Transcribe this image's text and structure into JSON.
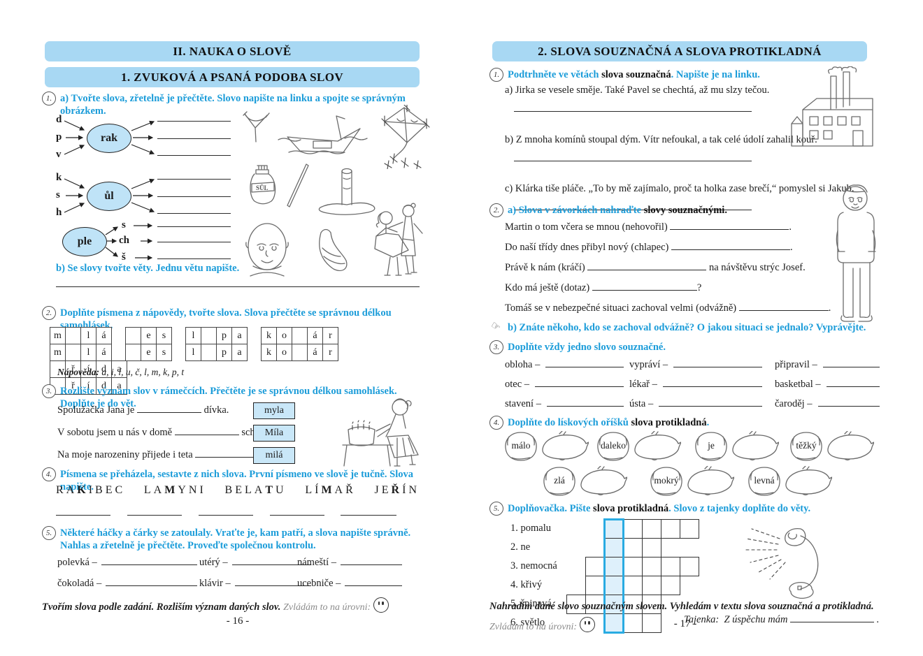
{
  "accent": {
    "bar_fill": "#a8d8f3",
    "blue_text": "#1b9cd9",
    "box_fill": "#c9e7f8",
    "tajenka_border": "#29abe2"
  },
  "left_page": {
    "title": "II. NAUKA O SLOVĚ",
    "subtitle": "1. ZVUKOVÁ A PSANÁ PODOBA SLOV",
    "ex1": {
      "number": "1.",
      "instruction_a": "a) Tvořte slova, zřetelně je přečtěte. Slovo napište na linku a spojte se správným obrázkem.",
      "instruction_b": "b) Se slovy tvořte věty. Jednu větu napište.",
      "group1_letters": [
        "d",
        "p",
        "v"
      ],
      "group1_core": "rak",
      "group2_letters": [
        "k",
        "s",
        "h"
      ],
      "group2_core": "ůl",
      "group3_core": "ple",
      "group3_letters": [
        "s",
        "ch",
        "š"
      ],
      "salt_label": "SŮL"
    },
    "ex2": {
      "number": "2.",
      "instruction": "Doplňte písmena z nápovědy, tvořte slova. Slova přečtěte se správnou délkou samohlásek.",
      "tables": [
        [
          "m",
          "",
          "l",
          "á"
        ],
        [
          "",
          "e",
          "s"
        ],
        [
          "l",
          "",
          "p",
          "a"
        ],
        [
          "k",
          "o",
          "",
          "á",
          "r"
        ],
        [
          "",
          "ř",
          "í",
          "d",
          "a"
        ]
      ],
      "hint_label": "Nápověda:",
      "hint": "a, i, í, u, č, l, m, k, p, t"
    },
    "ex3": {
      "number": "3.",
      "instruction": "Rozlište význam slov v rámečcích. Přečtěte je se správnou délkou samohlásek. Doplňte je do vět.",
      "s1_pre": "Spolužačka Jana je",
      "s1_post": "dívka.",
      "s2_pre": "V sobotu jsem u nás v domě",
      "s2_post": "schody.",
      "s3_pre": "Na moje narozeniny přijede i teta",
      "s3_post": ".",
      "boxes": [
        "myla",
        "Míla",
        "milá"
      ]
    },
    "ex4": {
      "number": "4.",
      "instruction": "Písmena se přeházela, sestavte z nich slova. První písmeno ve slově je tučně. Slova napište.",
      "words": [
        {
          "pre": "RA",
          "bold": "K",
          "post": "IBEC"
        },
        {
          "pre": "LA",
          "bold": "M",
          "post": "YNI"
        },
        {
          "pre": "BELA",
          "bold": "T",
          "post": "U"
        },
        {
          "pre": "LÍ",
          "bold": "M",
          "post": "AŘ"
        },
        {
          "pre": "JE",
          "bold": "Ř",
          "post": "ÍN"
        }
      ]
    },
    "ex5": {
      "number": "5.",
      "instruction": "Některé háčky a čárky se zatoulaly. Vraťte je, kam patří, a slova napište správně. Nahlas a zřetelně je přečtěte. Proveďte společnou kontrolu.",
      "items": [
        "polevká –",
        "utérý –",
        "námeští –",
        "čokoladá –",
        "klávir –",
        "ucebniče –"
      ]
    },
    "footer_bold": "Tvořím slova podle zadání. Rozliším význam daných slov.",
    "footer_gray": "Zvládám to na úrovni:",
    "page_number": "- 16 -"
  },
  "right_page": {
    "title": "2. SLOVA SOUZNAČNÁ A SLOVA PROTIKLADNÁ",
    "ex1": {
      "number": "1.",
      "instr_blue1": "Podtrhněte ve větách ",
      "instr_black": "slova souznačná",
      "instr_blue2": ". Napište je na linku.",
      "sentence_a": "a) Jirka se vesele směje. Také Pavel se chechtá, až mu slzy tečou.",
      "sentence_b": "b) Z mnoha komínů stoupal dým. Vítr nefoukal, a tak celé údolí zahalil kouř.",
      "sentence_c": "c) Klárka tiše pláče. „To by mě zajímalo, proč ta holka zase brečí,“ pomyslel si Jakub."
    },
    "ex2": {
      "number": "2.",
      "instr_blue": "a) Slova v závorkách nahraďte ",
      "instr_black": "slovy souznačnými.",
      "rows": [
        {
          "pre": "Martin o tom včera se mnou (nehovořil)",
          "tail": "."
        },
        {
          "pre": "Do naší třídy dnes přibyl nový (chlapec)",
          "tail": "."
        },
        {
          "pre": "Právě k nám (kráčí)",
          "tail": "na návštěvu strýc Josef."
        },
        {
          "pre": "Kdo má ještě (dotaz)",
          "tail": "?"
        },
        {
          "pre": "Tomáš se v nebezpečné situaci zachoval velmi (odvážně)",
          "tail": "."
        }
      ],
      "instr_b": "b) Znáte někoho, kdo se zachoval odvážně? O jakou situaci se jednalo? Vyprávějte."
    },
    "ex3": {
      "number": "3.",
      "instruction": "Doplňte vždy jedno slovo souznačné.",
      "items": [
        "obloha –",
        "vypráví –",
        "připravil –",
        "otec –",
        "lékař –",
        "basketbal –",
        "stavení –",
        "ústa –",
        "čaroděj –"
      ]
    },
    "ex4": {
      "number": "4.",
      "instr_blue": "Doplňte do lískových oříšků ",
      "instr_black": "slova protikladná",
      "instr_blue2": ".",
      "nuts1": [
        "málo",
        "daleko",
        "je",
        "těžký"
      ],
      "nuts2": [
        "zlá",
        "mokrý",
        "levná"
      ]
    },
    "ex5": {
      "number": "5.",
      "instr_blue1": "Doplňovačka. Pište ",
      "instr_black": "slova protikladná",
      "instr_blue2": ". Slovo z tajenky doplňte do věty.",
      "clues": [
        "1. pomalu",
        "2. ne",
        "3. nemocná",
        "4. křivý",
        "5. špinavá",
        "6. světlo"
      ],
      "grid": {
        "cell": 27,
        "blue_col": 2,
        "rows": [
          {
            "start": 2,
            "len": 5
          },
          {
            "start": 2,
            "len": 3
          },
          {
            "start": 1,
            "len": 6
          },
          {
            "start": 1,
            "len": 5
          },
          {
            "start": 0,
            "len": 5
          },
          {
            "start": 2,
            "len": 3
          }
        ]
      },
      "tajenka_label": "Tajenka:",
      "tajenka_text": "Z úspěchu mám",
      "tajenka_end": "."
    },
    "footer_bold": "Nahradím dané slovo souznačným slovem. Vyhledám v textu slova souznačná a protikladná.",
    "footer_gray": "Zvládám to na úrovni:",
    "page_number": "- 17 -"
  }
}
